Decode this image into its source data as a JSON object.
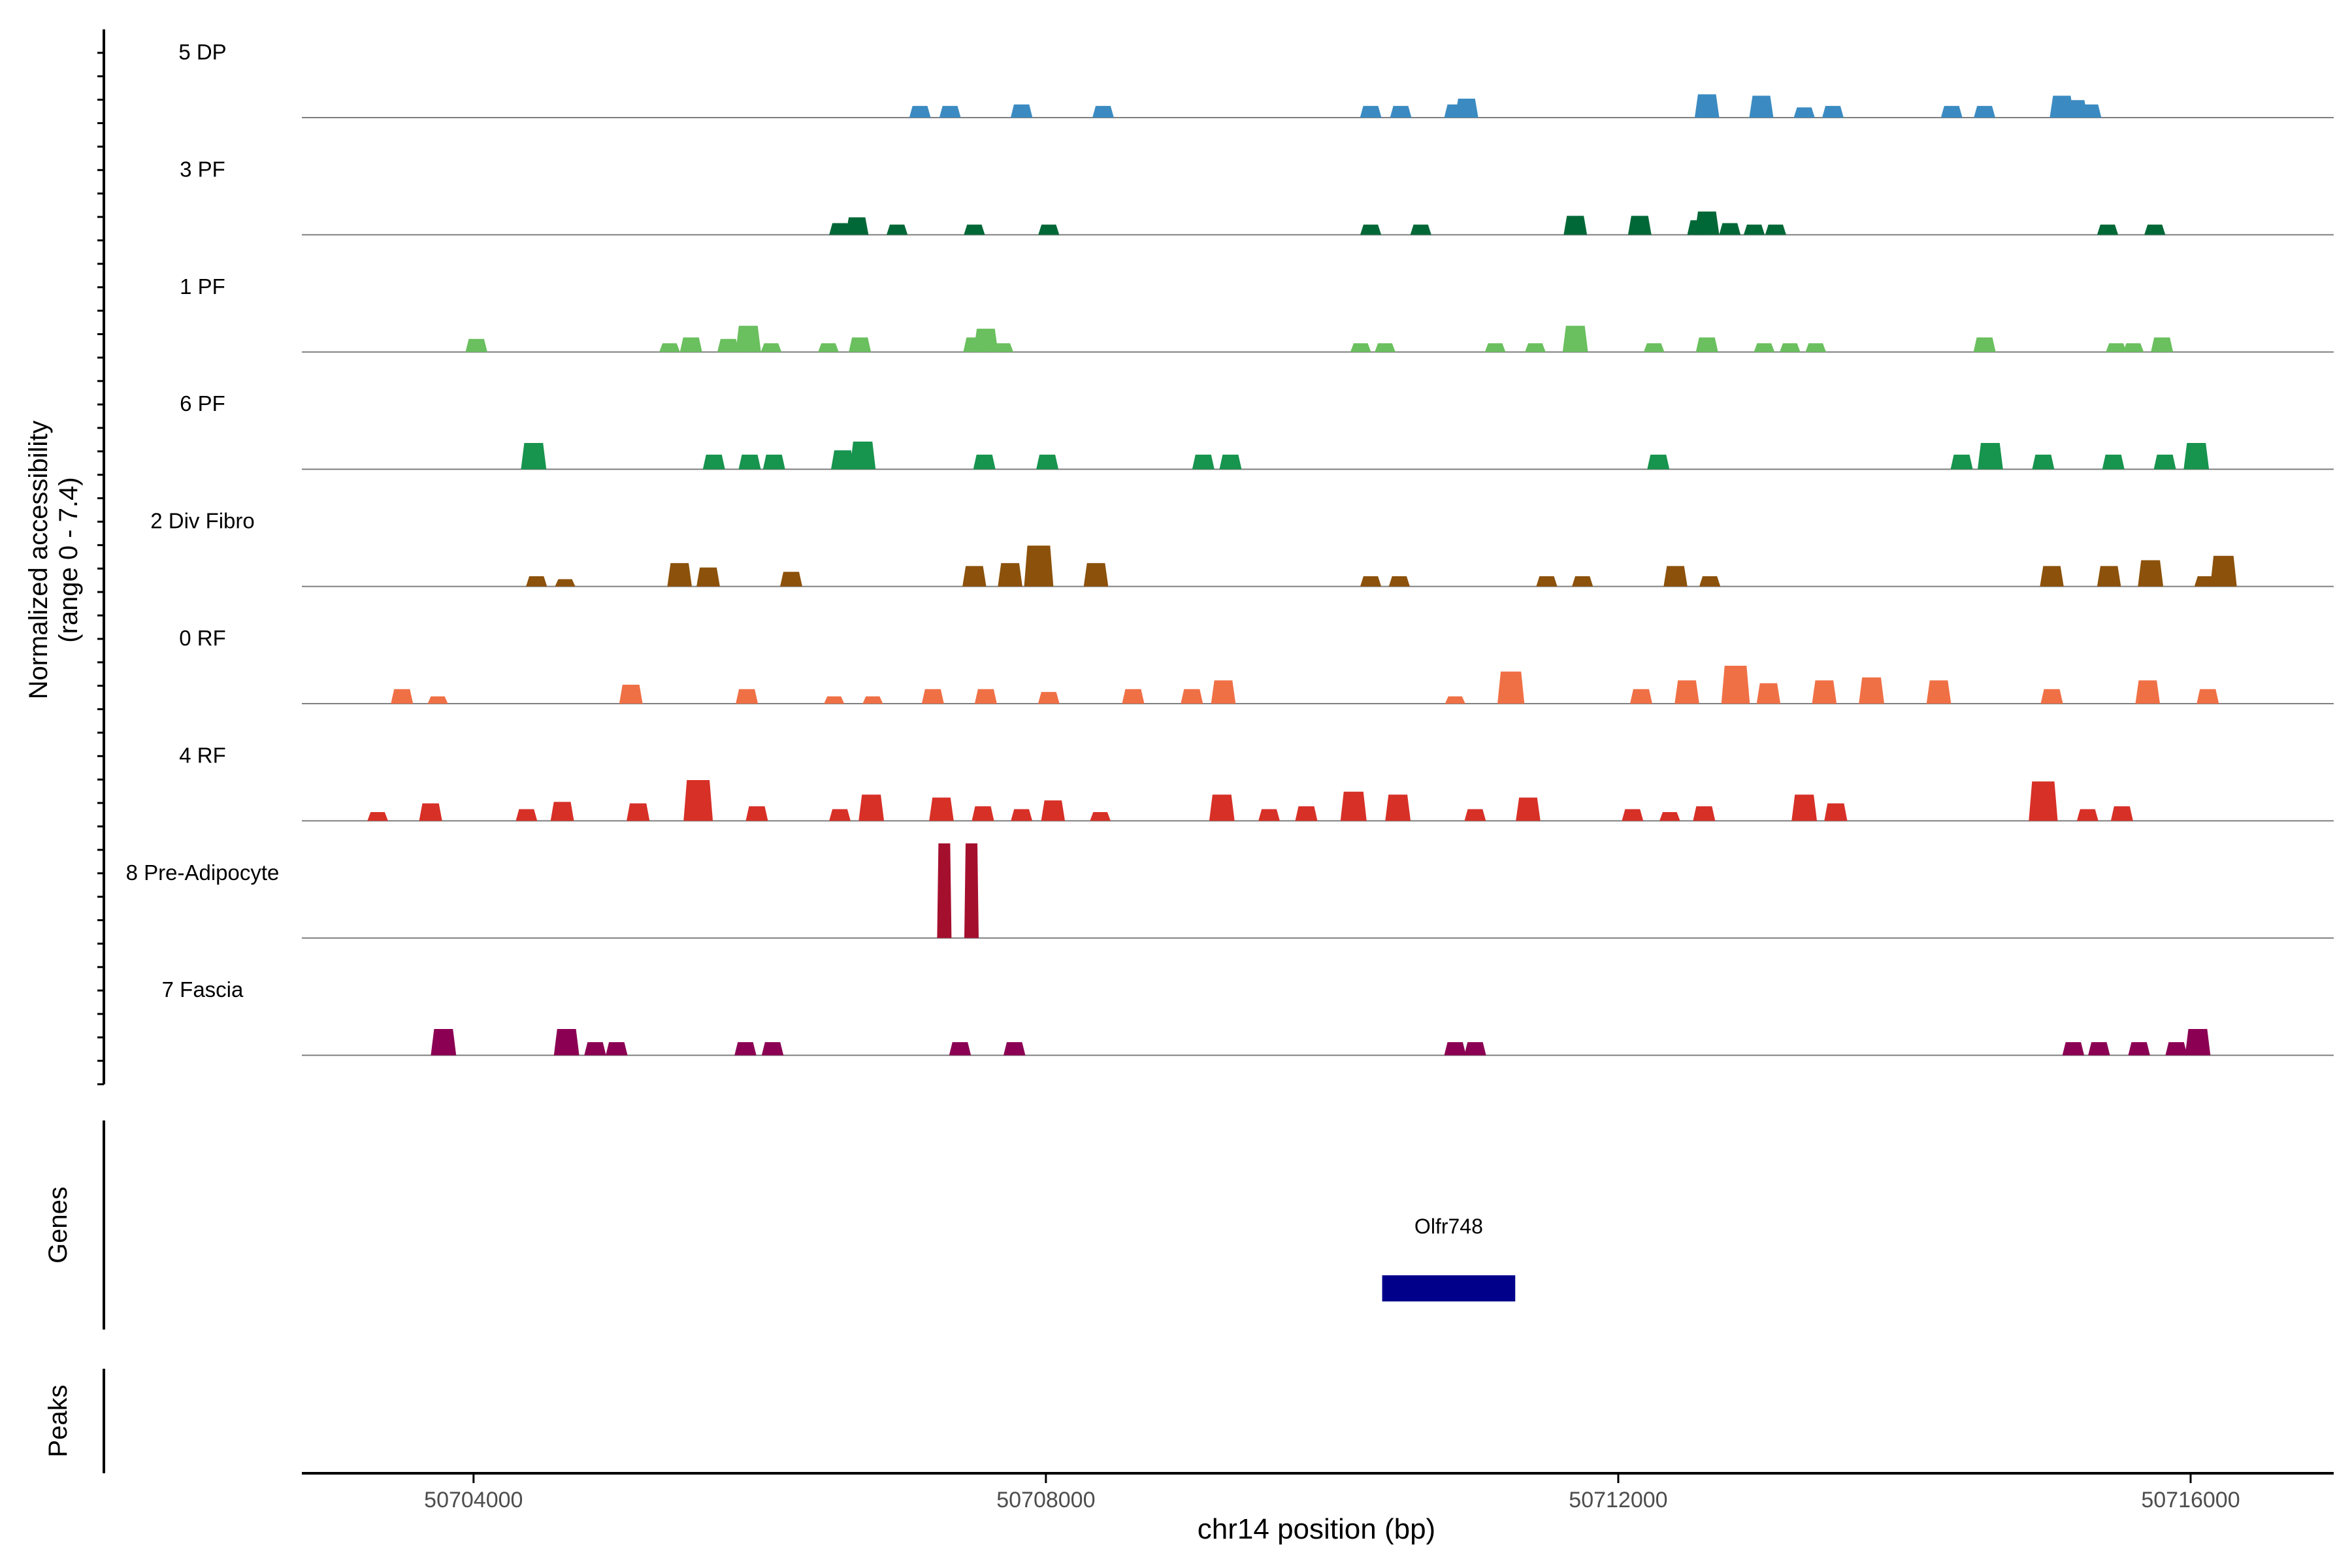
{
  "chart_data": {
    "type": "area",
    "title": "",
    "ylabel_line1": "Normalized accessibility",
    "ylabel_line2": "(range 0 - 7.4)",
    "xlabel": "chr14 position (bp)",
    "xlim": [
      50702800,
      50717000
    ],
    "ylim": [
      0,
      7.4
    ],
    "x_ticks": [
      {
        "value": 50704000,
        "label": "50704000"
      },
      {
        "value": 50708000,
        "label": "50708000"
      },
      {
        "value": 50712000,
        "label": "50712000"
      },
      {
        "value": 50716000,
        "label": "50716000"
      }
    ],
    "series": [
      {
        "name": "5 DP",
        "color": "#3b8bc2",
        "peaks": [
          [
            50707120,
            0.8
          ],
          [
            50707330,
            0.8
          ],
          [
            50707830,
            0.9
          ],
          [
            50708400,
            0.8
          ],
          [
            50710270,
            0.8
          ],
          [
            50710480,
            0.8
          ],
          [
            50710860,
            0.9
          ],
          [
            50710940,
            1.3
          ],
          [
            50712620,
            1.6
          ],
          [
            50713000,
            1.5
          ],
          [
            50713300,
            0.7
          ],
          [
            50713500,
            0.8
          ],
          [
            50714330,
            0.8
          ],
          [
            50714560,
            0.8
          ],
          [
            50715100,
            1.5
          ],
          [
            50715200,
            1.2
          ],
          [
            50715300,
            0.9
          ]
        ]
      },
      {
        "name": "3 PF",
        "color": "#006837",
        "peaks": [
          [
            50706560,
            0.8
          ],
          [
            50706680,
            1.2
          ],
          [
            50706960,
            0.7
          ],
          [
            50707500,
            0.7
          ],
          [
            50708020,
            0.7
          ],
          [
            50710270,
            0.7
          ],
          [
            50710620,
            0.7
          ],
          [
            50711700,
            1.3
          ],
          [
            50712150,
            1.3
          ],
          [
            50712560,
            1.0
          ],
          [
            50712620,
            1.6
          ],
          [
            50712780,
            0.8
          ],
          [
            50712950,
            0.7
          ],
          [
            50713100,
            0.7
          ],
          [
            50715420,
            0.7
          ],
          [
            50715750,
            0.7
          ]
        ]
      },
      {
        "name": "1 PF",
        "color": "#6abf5e",
        "peaks": [
          [
            50704020,
            0.9
          ],
          [
            50705370,
            0.6
          ],
          [
            50705520,
            1.0
          ],
          [
            50705780,
            0.9
          ],
          [
            50705920,
            1.8
          ],
          [
            50706080,
            0.6
          ],
          [
            50706480,
            0.6
          ],
          [
            50706700,
            1.0
          ],
          [
            50707500,
            1.0
          ],
          [
            50707580,
            1.6
          ],
          [
            50707700,
            0.6
          ],
          [
            50710200,
            0.6
          ],
          [
            50710370,
            0.6
          ],
          [
            50711140,
            0.6
          ],
          [
            50711420,
            0.6
          ],
          [
            50711700,
            1.8
          ],
          [
            50712250,
            0.6
          ],
          [
            50712620,
            1.0
          ],
          [
            50713020,
            0.6
          ],
          [
            50713200,
            0.6
          ],
          [
            50713380,
            0.6
          ],
          [
            50714560,
            1.0
          ],
          [
            50715480,
            0.6
          ],
          [
            50715600,
            0.6
          ],
          [
            50715800,
            1.0
          ]
        ]
      },
      {
        "name": "6 PF",
        "color": "#17944e",
        "peaks": [
          [
            50704420,
            1.8
          ],
          [
            50705680,
            1.0
          ],
          [
            50705930,
            1.0
          ],
          [
            50706100,
            1.0
          ],
          [
            50706580,
            1.3
          ],
          [
            50706720,
            1.9
          ],
          [
            50707570,
            1.0
          ],
          [
            50708010,
            1.0
          ],
          [
            50709100,
            1.0
          ],
          [
            50709290,
            1.0
          ],
          [
            50712280,
            1.0
          ],
          [
            50714400,
            1.0
          ],
          [
            50714600,
            1.8
          ],
          [
            50714970,
            1.0
          ],
          [
            50715460,
            1.0
          ],
          [
            50715820,
            1.0
          ],
          [
            50716040,
            1.8
          ]
        ]
      },
      {
        "name": "2 Div Fibro",
        "color": "#8c510a",
        "peaks": [
          [
            50704440,
            0.7
          ],
          [
            50704640,
            0.5
          ],
          [
            50705440,
            1.6
          ],
          [
            50705640,
            1.3
          ],
          [
            50706220,
            1.0
          ],
          [
            50707500,
            1.4
          ],
          [
            50707750,
            1.6
          ],
          [
            50707950,
            2.8
          ],
          [
            50708350,
            1.6
          ],
          [
            50710270,
            0.7
          ],
          [
            50710470,
            0.7
          ],
          [
            50711500,
            0.7
          ],
          [
            50711750,
            0.7
          ],
          [
            50712400,
            1.4
          ],
          [
            50712640,
            0.7
          ],
          [
            50715030,
            1.4
          ],
          [
            50715430,
            1.4
          ],
          [
            50715720,
            1.8
          ],
          [
            50716100,
            0.7
          ],
          [
            50716230,
            2.1
          ]
        ]
      },
      {
        "name": "0 RF",
        "color": "#f07046",
        "peaks": [
          [
            50703500,
            1.0
          ],
          [
            50703750,
            0.5
          ],
          [
            50705100,
            1.3
          ],
          [
            50705910,
            1.0
          ],
          [
            50706520,
            0.5
          ],
          [
            50706790,
            0.5
          ],
          [
            50707210,
            1.0
          ],
          [
            50707580,
            1.0
          ],
          [
            50708020,
            0.8
          ],
          [
            50708610,
            1.0
          ],
          [
            50709020,
            1.0
          ],
          [
            50709240,
            1.6
          ],
          [
            50710860,
            0.5
          ],
          [
            50711250,
            2.2
          ],
          [
            50712160,
            1.0
          ],
          [
            50712480,
            1.6
          ],
          [
            50712820,
            2.6
          ],
          [
            50713050,
            1.4
          ],
          [
            50713440,
            1.6
          ],
          [
            50713770,
            1.8
          ],
          [
            50714240,
            1.6
          ],
          [
            50715030,
            1.0
          ],
          [
            50715700,
            1.6
          ],
          [
            50716120,
            1.0
          ]
        ]
      },
      {
        "name": "4 RF",
        "color": "#d73027",
        "peaks": [
          [
            50703330,
            0.6
          ],
          [
            50703700,
            1.2
          ],
          [
            50704370,
            0.8
          ],
          [
            50704620,
            1.3
          ],
          [
            50705150,
            1.2
          ],
          [
            50705570,
            2.8
          ],
          [
            50705980,
            1.0
          ],
          [
            50706560,
            0.8
          ],
          [
            50706780,
            1.8
          ],
          [
            50707270,
            1.6
          ],
          [
            50707560,
            1.0
          ],
          [
            50707830,
            0.8
          ],
          [
            50708050,
            1.4
          ],
          [
            50708380,
            0.6
          ],
          [
            50709230,
            1.8
          ],
          [
            50709560,
            0.8
          ],
          [
            50709820,
            1.0
          ],
          [
            50710150,
            2.0
          ],
          [
            50710460,
            1.8
          ],
          [
            50711000,
            0.8
          ],
          [
            50711370,
            1.6
          ],
          [
            50712100,
            0.8
          ],
          [
            50712360,
            0.6
          ],
          [
            50712600,
            1.0
          ],
          [
            50713300,
            1.8
          ],
          [
            50713520,
            1.2
          ],
          [
            50714970,
            2.7
          ],
          [
            50715280,
            0.8
          ],
          [
            50715520,
            1.0
          ]
        ]
      },
      {
        "name": "8 Pre-Adipocyte",
        "color": "#a50f2e",
        "peaks": [
          [
            50707290,
            6.5
          ],
          [
            50707480,
            6.5
          ]
        ]
      },
      {
        "name": "7 Fascia",
        "color": "#8b0053",
        "peaks": [
          [
            50703790,
            1.8
          ],
          [
            50704650,
            1.8
          ],
          [
            50704850,
            0.9
          ],
          [
            50705000,
            0.9
          ],
          [
            50705900,
            0.9
          ],
          [
            50706090,
            0.9
          ],
          [
            50707400,
            0.9
          ],
          [
            50707780,
            0.9
          ],
          [
            50710860,
            0.9
          ],
          [
            50711000,
            0.9
          ],
          [
            50715180,
            0.9
          ],
          [
            50715360,
            0.9
          ],
          [
            50715640,
            0.9
          ],
          [
            50715900,
            0.9
          ],
          [
            50716050,
            1.8
          ]
        ]
      }
    ],
    "genes_track_label": "Genes",
    "genes": [
      {
        "name": "Olfr748",
        "start": 50710350,
        "end": 50711280,
        "color": "#00008b"
      }
    ],
    "peaks_track_label": "Peaks",
    "peaks_track": []
  }
}
